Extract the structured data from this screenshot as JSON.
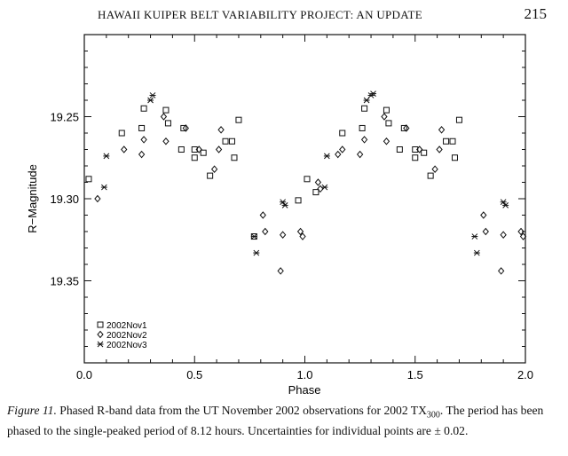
{
  "header": {
    "running_title": "HAWAII KUIPER BELT VARIABILITY PROJECT: AN UPDATE",
    "page_number": "215"
  },
  "caption": {
    "label": "Figure 11.",
    "text_1": " Phased R-band data from the UT November 2002 observations for 2002 TX",
    "subscript": "300",
    "text_2": ". The period has been phased to the single-peaked period of 8.12 hours. Uncertainties for individual points are ± 0.02."
  },
  "chart_data": {
    "type": "scatter",
    "xlabel": "Phase",
    "ylabel": "R−Magnitude",
    "xlim": [
      0.0,
      2.0
    ],
    "ylim": [
      19.4,
      19.2
    ],
    "y_inverted": true,
    "x_ticks": [
      "0.0",
      "0.5",
      "1.0",
      "1.5",
      "2.0"
    ],
    "y_ticks": [
      "19.25",
      "19.30",
      "19.35"
    ],
    "legend_position": "bottom-left",
    "series": [
      {
        "name": "2002Nov1",
        "marker": "square",
        "points": [
          [
            0.02,
            19.288
          ],
          [
            0.17,
            19.26
          ],
          [
            0.26,
            19.257
          ],
          [
            0.27,
            19.245
          ],
          [
            0.37,
            19.246
          ],
          [
            0.38,
            19.254
          ],
          [
            0.44,
            19.27
          ],
          [
            0.45,
            19.257
          ],
          [
            0.5,
            19.27
          ],
          [
            0.5,
            19.275
          ],
          [
            0.54,
            19.272
          ],
          [
            0.57,
            19.286
          ],
          [
            0.64,
            19.265
          ],
          [
            0.67,
            19.265
          ],
          [
            0.68,
            19.275
          ],
          [
            0.7,
            19.252
          ],
          [
            0.77,
            19.323
          ],
          [
            0.97,
            19.301
          ],
          [
            1.01,
            19.288
          ],
          [
            1.05,
            19.296
          ],
          [
            1.17,
            19.26
          ],
          [
            1.26,
            19.257
          ],
          [
            1.27,
            19.245
          ],
          [
            1.37,
            19.246
          ],
          [
            1.38,
            19.254
          ],
          [
            1.43,
            19.27
          ],
          [
            1.45,
            19.257
          ],
          [
            1.5,
            19.27
          ],
          [
            1.5,
            19.275
          ],
          [
            1.54,
            19.272
          ],
          [
            1.57,
            19.286
          ],
          [
            1.64,
            19.265
          ],
          [
            1.67,
            19.265
          ],
          [
            1.68,
            19.275
          ],
          [
            1.7,
            19.252
          ]
        ]
      },
      {
        "name": "2002Nov2",
        "marker": "diamond",
        "points": [
          [
            0.06,
            19.3
          ],
          [
            0.18,
            19.27
          ],
          [
            0.26,
            19.273
          ],
          [
            0.27,
            19.264
          ],
          [
            0.36,
            19.25
          ],
          [
            0.37,
            19.265
          ],
          [
            0.46,
            19.257
          ],
          [
            0.52,
            19.27
          ],
          [
            0.59,
            19.282
          ],
          [
            0.61,
            19.27
          ],
          [
            0.62,
            19.258
          ],
          [
            0.81,
            19.31
          ],
          [
            0.82,
            19.32
          ],
          [
            0.89,
            19.344
          ],
          [
            0.9,
            19.322
          ],
          [
            0.98,
            19.32
          ],
          [
            0.99,
            19.323
          ],
          [
            1.06,
            19.29
          ],
          [
            1.07,
            19.294
          ],
          [
            1.15,
            19.273
          ],
          [
            1.17,
            19.27
          ],
          [
            1.25,
            19.273
          ],
          [
            1.27,
            19.264
          ],
          [
            1.36,
            19.25
          ],
          [
            1.37,
            19.265
          ],
          [
            1.46,
            19.257
          ],
          [
            1.52,
            19.27
          ],
          [
            1.59,
            19.282
          ],
          [
            1.61,
            19.27
          ],
          [
            1.62,
            19.258
          ],
          [
            1.81,
            19.31
          ],
          [
            1.82,
            19.32
          ],
          [
            1.89,
            19.344
          ],
          [
            1.9,
            19.322
          ],
          [
            1.98,
            19.32
          ],
          [
            1.99,
            19.323
          ]
        ]
      },
      {
        "name": "2002Nov3",
        "marker": "asterisk",
        "points": [
          [
            0.09,
            19.293
          ],
          [
            0.1,
            19.274
          ],
          [
            0.3,
            19.24
          ],
          [
            0.31,
            19.237
          ],
          [
            0.77,
            19.323
          ],
          [
            0.78,
            19.333
          ],
          [
            0.9,
            19.302
          ],
          [
            0.91,
            19.304
          ],
          [
            1.09,
            19.293
          ],
          [
            1.1,
            19.274
          ],
          [
            1.28,
            19.24
          ],
          [
            1.3,
            19.237
          ],
          [
            1.31,
            19.236
          ],
          [
            1.77,
            19.323
          ],
          [
            1.78,
            19.333
          ],
          [
            1.9,
            19.302
          ],
          [
            1.91,
            19.304
          ]
        ]
      }
    ]
  }
}
